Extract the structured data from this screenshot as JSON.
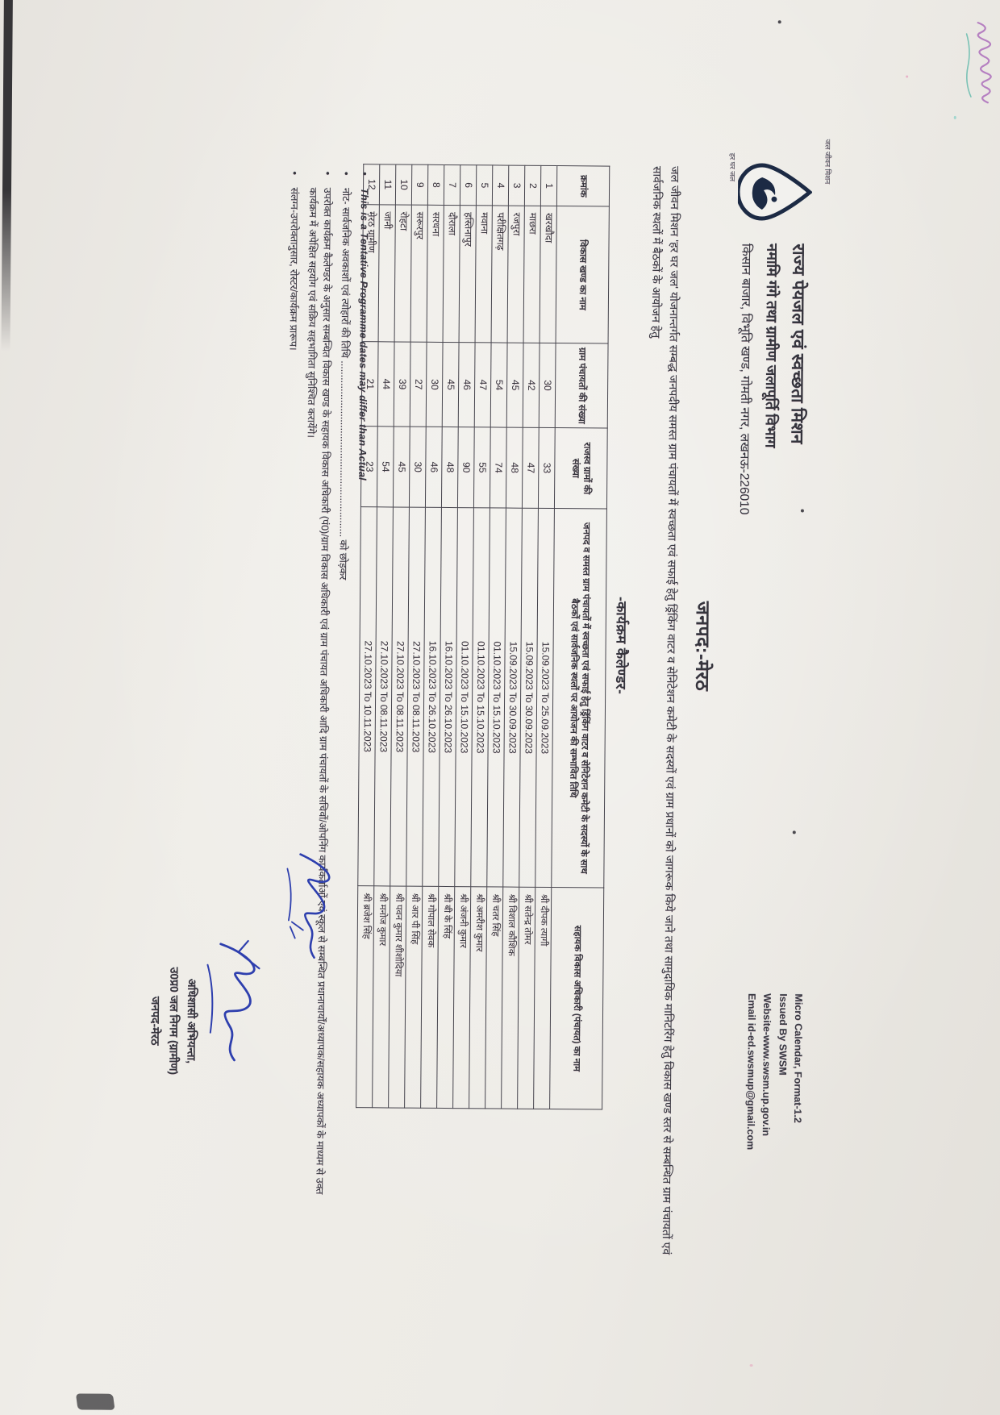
{
  "letterhead": {
    "logo_caption_top": "जल जीवन मिशन",
    "logo_caption_bottom": "हर घर जल",
    "org_line1": "राज्य पेयजल एवं स्वच्छता मिशन",
    "org_line2": "नमामि गंगे तथा ग्रामीण जलापूर्ति विभाग",
    "org_line3": "किसान बाजार, विभूति खण्ड, गोमती नगर, लखनऊ-226010"
  },
  "issuer": {
    "line1": "Micro Calendar, Format-1.2",
    "line2": "Issued By SWSM",
    "line3": "Website-www.swsm.up.gov.in",
    "line4": "Email id-ed.swsmup@gmail.com"
  },
  "district_title": "जनपद:-मेरठ",
  "intro": {
    "para": "जल जीवन मिशन 'हर घर जल' योजनान्तर्गत सम्बद्ध जनपदीय समस्त ग्राम पंचायतों में स्वच्छता एवं सफाई हेतु ड्रिंकिंग वाटर व सेनिटेशन कमेटी के सदस्यों एवं ग्राम प्रधानों को जागरूक किये जाने तथा सामुदायिक मानिटरिंग हेतु विकास खण्ड स्तर से सम्बन्धित ग्राम पंचायतों एवं सार्वजनिक स्थलों में बैठकों के आयोजन हेतु",
    "calendar_heading": "-कार्यक्रम कैलेण्डर-"
  },
  "table": {
    "col_keys": [
      "sno",
      "block",
      "gp_count",
      "rv_count",
      "date_range",
      "ado_name"
    ],
    "headers": [
      "क्रमांक",
      "विकास खण्ड का नाम",
      "ग्राम पंचायतों की संख्या",
      "राजस्व ग्रामों की संख्या",
      "जनपद व समस्त ग्राम पंचायतों में स्वच्छता एवं सफाई हेतु ड्रिंकिंग वाटर व सेनिटेशन कमेटी के सदस्यों के साथ बैठकों एवं सार्वजनिक स्थलों पर आयोजन की सम्भावित तिथि",
      "सहायक विकास अधिकारी (पंचायत) का नाम"
    ],
    "rows": [
      [
        "1",
        "खरखौदा",
        "30",
        "33",
        "15.09.2023 To 25.09.2023",
        "श्री दीपक त्यागी"
      ],
      [
        "2",
        "माछरा",
        "42",
        "47",
        "15.09.2023 To 30.09.2023",
        "श्री सतेन्द्र तोमर"
      ],
      [
        "3",
        "रजपुरा",
        "45",
        "48",
        "15.09.2023 To 30.09.2023",
        "श्री विशाल कौशिक"
      ],
      [
        "4",
        "परीक्षितगढ़",
        "54",
        "74",
        "01.10.2023 To 15.10.2023",
        "श्री चतर सिंह"
      ],
      [
        "5",
        "मवाना",
        "47",
        "55",
        "01.10.2023 To 15.10.2023",
        "श्री अमरीश कुमार"
      ],
      [
        "6",
        "हस्तिनापुर",
        "46",
        "90",
        "01.10.2023 To 15.10.2023",
        "श्री अंजनी कुमार"
      ],
      [
        "7",
        "दौराला",
        "45",
        "48",
        "16.10.2023 To 26.10.2023",
        "श्री बी के सिंह"
      ],
      [
        "8",
        "सरधना",
        "30",
        "46",
        "16.10.2023 To 26.10.2023",
        "श्री गोपाल सेवक"
      ],
      [
        "9",
        "सरूरपुर",
        "27",
        "30",
        "27.10.2023 To 08.11.2023",
        "श्री आर पी सिंह"
      ],
      [
        "10",
        "रोहटा",
        "39",
        "45",
        "27.10.2023 To 08.11.2023",
        "श्री पवन कुमार शीशोदिया"
      ],
      [
        "11",
        "जानी",
        "44",
        "54",
        "27.10.2023 To 08.11.2023",
        "श्री मनोज कुमार"
      ],
      [
        "12",
        "मेरठ ग्रामीण",
        "21",
        "23",
        "27.10.2023 To 10.11.2023",
        "श्री ब्रजेश सिंह"
      ]
    ]
  },
  "notes": [
    "This is a Tentative Programme dates may differ than Actual",
    "नोट- सार्वजनिक अवकाशों एवं त्योहारों की तिथि ............................................................... को छोड़कर",
    "उपरोक्त कार्यक्रम कैलेण्डर के अनुसार सम्बन्धित विकास खण्ड के सहायक विकास अधिकारी (पं0)/ग्राम विकास अधिकारी एवं ग्राम पंचायत अधिकारी आदि ग्राम पंचायतों के सचिवों/ओपनिंग कार्यकर्ताओं एवं स्कूल से सम्बन्धित प्रधानाचार्यों/अध्यापक/सहायक अध्यापकों के माध्यम से उक्त कार्यक्रम में अपेक्षित सहयोग एवं सक्रिय सहभागिता सुनिश्चित करायेंगे।",
    "संलग्न-उपरोक्तानुसार, रोस्टर/कार्यक्रम प्रारूप।"
  ],
  "signature": {
    "line1": "अधिशासी अभियन्ता,",
    "line2": "उ0प्र0 जल निगम (ग्रामीण)",
    "line3": "जनपद-मेरठ"
  },
  "colors": {
    "paper": "#edebe6",
    "ink": "#35343c",
    "handwriting_blue": "#2e3fae",
    "table_border": "#46444d"
  }
}
